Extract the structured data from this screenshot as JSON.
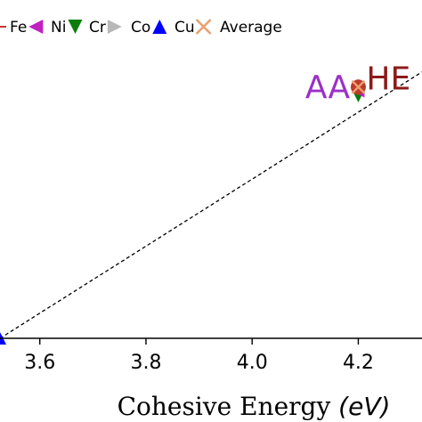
{
  "legend": [
    {
      "label": "Fe",
      "marker": "left-triangle",
      "color": "#c020c0"
    },
    {
      "label": "Ni",
      "marker": "down-triangle",
      "color": "#0a7d0a"
    },
    {
      "label": "Cr",
      "marker": "right-triangle",
      "color": "#b8b8b8"
    },
    {
      "label": "Co",
      "marker": "up-triangle",
      "color": "#0000ff"
    },
    {
      "label": "Cu",
      "marker": "x",
      "color": "#e8a070"
    },
    {
      "label": "Average",
      "marker": "none",
      "color": "#000000"
    }
  ],
  "legend_partial_marker_color": "#c0392b",
  "chart_data": {
    "type": "scatter",
    "xlabel": "Cohesive Energy ",
    "xlabel_unit": "(eV)",
    "xlim": [
      3.525,
      4.32
    ],
    "ylim": [
      0,
      1
    ],
    "x_ticks": [
      3.6,
      3.8,
      4.0,
      4.2
    ],
    "x_tick_labels": [
      "3.6",
      "3.8",
      "4.0",
      "4.2"
    ],
    "grid": false,
    "legend_position": "top",
    "annotations": [
      {
        "text": "AA",
        "x": 4.1,
        "y": 0.83,
        "color": "#9b30c8"
      },
      {
        "text": "HE",
        "x": 4.215,
        "y": 0.857,
        "color": "#8b1a1a"
      }
    ],
    "trend_line": {
      "style": "dashed",
      "color": "#000000",
      "points": [
        [
          3.525,
          0.0
        ],
        [
          4.32,
          0.88
        ]
      ]
    },
    "series": [
      {
        "name": "Co",
        "marker": "up-triangle",
        "color": "#0000ff",
        "points": [
          [
            3.525,
            0.0
          ]
        ]
      },
      {
        "name": "Ni",
        "marker": "down-triangle",
        "color": "#0a7d0a",
        "points": [
          [
            4.2,
            0.8
          ]
        ]
      },
      {
        "name": "Fe",
        "marker": "left-triangle",
        "color": "#c020c0",
        "points": [
          [
            4.2,
            0.816
          ]
        ]
      },
      {
        "name": "Cu",
        "marker": "x",
        "color": "#e8a070",
        "points": [
          [
            4.2,
            0.83
          ]
        ]
      }
    ],
    "highlight_point": {
      "x": 4.2,
      "y": 0.83,
      "color": "#c0392b"
    }
  }
}
